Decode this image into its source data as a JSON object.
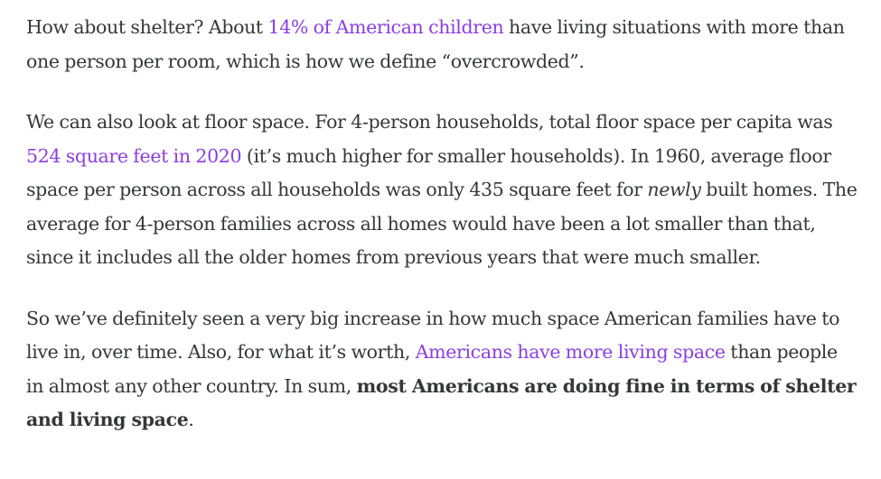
{
  "paragraphs": [
    {
      "t1": "How about shelter? About ",
      "link": "14% of American children",
      "t2": " have living situations with more than one person per room, which is how we define “overcrowded”."
    },
    {
      "t1": "We can also look at floor space. For 4-person households, total floor space per capita was ",
      "link": "524 square feet in 2020",
      "t2": " (it’s much higher for smaller households). In 1960, average floor space per person across all households was only 435 square feet for ",
      "em": "newly",
      "t3": " built homes. The average for 4-person families across all homes would have been a lot smaller than that, since it includes all the older homes from previous years that were much smaller."
    },
    {
      "t1": "So we’ve definitely seen a very big increase in how much space American families have to live in, over time. Also, for what it’s worth, ",
      "link": "Americans have more living space",
      "t2": " than people in almost any other country. In sum, ",
      "bold": "most Americans are doing fine in terms of shelter and living space",
      "t3": "."
    }
  ],
  "colors": {
    "text": "#363737",
    "link": "#8a3ee8",
    "background": "#ffffff"
  }
}
